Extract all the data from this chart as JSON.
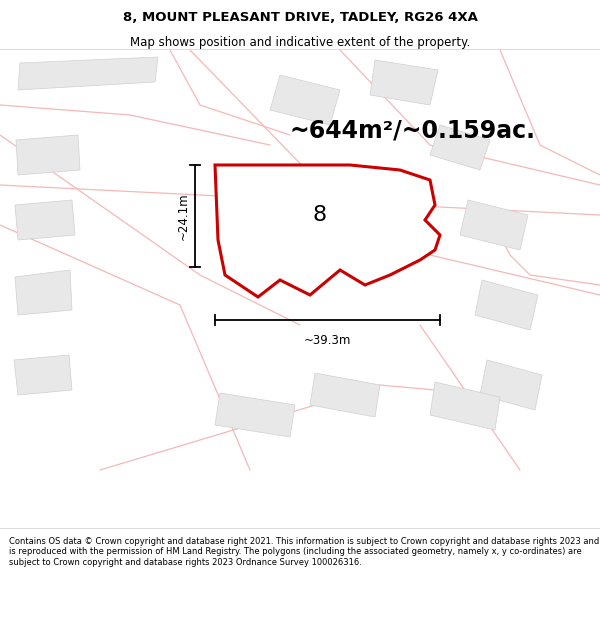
{
  "title": "8, MOUNT PLEASANT DRIVE, TADLEY, RG26 4XA",
  "subtitle": "Map shows position and indicative extent of the property.",
  "area_label": "~644m²/~0.159ac.",
  "plot_number": "8",
  "dim_width": "~39.3m",
  "dim_height": "~24.1m",
  "footer": "Contains OS data © Crown copyright and database right 2021. This information is subject to Crown copyright and database rights 2023 and is reproduced with the permission of HM Land Registry. The polygons (including the associated geometry, namely x, y co-ordinates) are subject to Crown copyright and database rights 2023 Ordnance Survey 100026316.",
  "bg_color": "#ffffff",
  "map_bg": "#ffffff",
  "plot_fill": "#ffffff",
  "plot_edge": "#cc0000",
  "road_color": "#f4b8b8",
  "building_fill": "#e8e8e8",
  "building_edge": "#d0d0d0",
  "title_fontsize": 9.5,
  "subtitle_fontsize": 8.5,
  "area_fontsize": 17,
  "number_fontsize": 16,
  "dim_fontsize": 8.5,
  "footer_fontsize": 6.0
}
